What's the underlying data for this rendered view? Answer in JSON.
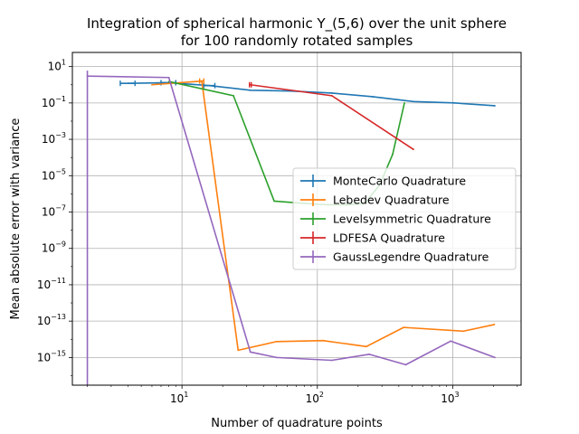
{
  "chart_data": {
    "type": "line",
    "title_lines": [
      "Integration of spherical harmonic Y_(5,6) over the unit sphere",
      "for 100 randomly rotated samples"
    ],
    "xlabel": "Number of quadrature points",
    "ylabel": "Mean absolute error with variance",
    "xscale": "log",
    "yscale": "log",
    "xlim": [
      1.55,
      3200
    ],
    "ylim": [
      3e-17,
      60
    ],
    "x_ticks": [
      {
        "value": 10,
        "label": "10",
        "sup": "1"
      },
      {
        "value": 100,
        "label": "10",
        "sup": "2"
      },
      {
        "value": 1000,
        "label": "10",
        "sup": "3"
      }
    ],
    "y_ticks": [
      {
        "value": 10,
        "label": "10",
        "sup": "1"
      },
      {
        "value": 0.1,
        "label": "10",
        "sup": "−1"
      },
      {
        "value": 0.001,
        "label": "10",
        "sup": "−3"
      },
      {
        "value": 1e-05,
        "label": "10",
        "sup": "−5"
      },
      {
        "value": 1e-07,
        "label": "10",
        "sup": "−7"
      },
      {
        "value": 1e-09,
        "label": "10",
        "sup": "−9"
      },
      {
        "value": 1e-11,
        "label": "10",
        "sup": "−11"
      },
      {
        "value": 1e-13,
        "label": "10",
        "sup": "−13"
      },
      {
        "value": 1e-15,
        "label": "10",
        "sup": "−15"
      }
    ],
    "grid": true,
    "legend_position": "center-right",
    "series": [
      {
        "name": "MonteCarlo Quadrature",
        "color": "#1f77b4",
        "x": [
          4,
          8,
          16,
          32,
          64,
          128,
          256,
          512,
          1024,
          2048
        ],
        "y": [
          1.2,
          1.3,
          0.9,
          0.5,
          0.45,
          0.35,
          0.22,
          0.12,
          0.1,
          0.07
        ],
        "xerr": [
          [
            3.5,
            4.5
          ],
          [
            7,
            9
          ],
          [
            14.5,
            17.5
          ],
          null,
          null,
          null,
          null,
          null,
          null,
          null
        ]
      },
      {
        "name": "Lebedev Quadrature",
        "color": "#ff7f0e",
        "x": [
          6,
          14,
          26,
          50,
          110,
          230,
          434,
          1202,
          2030
        ],
        "y": [
          1.0,
          1.6,
          2.5e-15,
          7.5e-15,
          8.5e-15,
          4e-15,
          4.5e-14,
          2.8e-14,
          6.5e-14
        ],
        "xerr": [
          null,
          [
            13.5,
            14.5
          ],
          null,
          null,
          null,
          null,
          null,
          null,
          null
        ]
      },
      {
        "name": "Levelsymmetric Quadrature",
        "color": "#2ca02c",
        "x": [
          8,
          24,
          48,
          80,
          120,
          168,
          224,
          288,
          360,
          440
        ],
        "y": [
          1.5,
          0.25,
          4e-07,
          3e-07,
          2.5e-07,
          2.5e-07,
          3e-07,
          3e-06,
          0.00015,
          0.1
        ],
        "xerr": []
      },
      {
        "name": "LDFESA Quadrature",
        "color": "#d62728",
        "x": [
          32,
          128,
          512
        ],
        "y": [
          1.0,
          0.25,
          0.00028
        ],
        "xerr": [
          [
            31.5,
            32.5
          ],
          null,
          null
        ]
      },
      {
        "name": "GaussLegendre Quadrature",
        "color": "#9467bd",
        "x": [
          2,
          8,
          32,
          50,
          128,
          242,
          450,
          968,
          2048
        ],
        "y": [
          3.0,
          2.5,
          2e-15,
          1e-15,
          7e-16,
          1.5e-15,
          4e-16,
          8e-15,
          1e-15
        ],
        "yerr": [
          [
            3e-17,
            6.0
          ],
          null,
          null,
          null,
          null,
          null,
          null,
          null,
          null
        ]
      }
    ]
  }
}
